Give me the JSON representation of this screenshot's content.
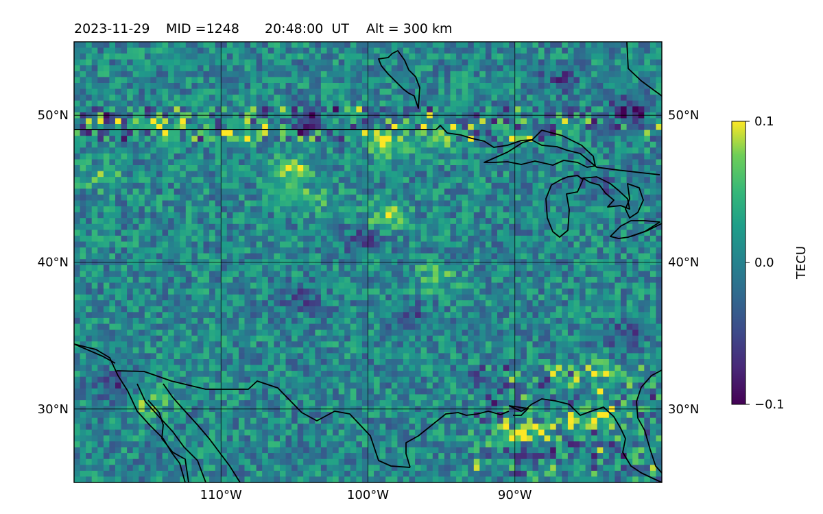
{
  "header": {
    "date": "2023-11-29",
    "mid": "MID =1248",
    "time": "20:48:00  UT",
    "alt": "Alt = 300 km"
  },
  "map": {
    "lat_range": [
      25,
      55
    ],
    "lon_range": [
      -120,
      -80
    ],
    "gridlines": true,
    "lat_ticks": [
      {
        "value": 50,
        "label": "50°N"
      },
      {
        "value": 40,
        "label": "40°N"
      },
      {
        "value": 30,
        "label": "30°N"
      }
    ],
    "lon_ticks": [
      {
        "value": -110,
        "label": "110°W"
      },
      {
        "value": -100,
        "label": "100°W"
      },
      {
        "value": -90,
        "label": "90°W"
      }
    ],
    "field_description": "differential TEC perturbation map with coastlines and borders",
    "hotspots": [
      {
        "lat": 48.2,
        "lon": -98.6,
        "value": 0.1
      },
      {
        "lat": 46.3,
        "lon": -105.2,
        "value": 0.09
      },
      {
        "lat": 49.0,
        "lon": -113.8,
        "value": 0.08
      },
      {
        "lat": 48.9,
        "lon": -108.6,
        "value": 0.08
      },
      {
        "lat": 48.5,
        "lon": -95.0,
        "value": 0.08
      },
      {
        "lat": 43.0,
        "lon": -98.8,
        "value": 0.09
      },
      {
        "lat": 39.0,
        "lon": -95.5,
        "value": 0.06
      },
      {
        "lat": 28.0,
        "lon": -90.0,
        "value": 0.1
      },
      {
        "lat": 28.3,
        "lon": -88.3,
        "value": 0.09
      },
      {
        "lat": 29.5,
        "lon": -84.0,
        "value": 0.08
      },
      {
        "lat": 32.3,
        "lon": -84.5,
        "value": 0.07
      },
      {
        "lat": 30.5,
        "lon": -115.0,
        "value": 0.07
      },
      {
        "lat": 45.8,
        "lon": -118.0,
        "value": 0.05
      },
      {
        "lat": 44.3,
        "lon": -103.8,
        "value": 0.05
      }
    ],
    "coldspots": [
      {
        "lat": 27.2,
        "lon": -89.0,
        "value": -0.1
      },
      {
        "lat": 31.5,
        "lon": -117.0,
        "value": -0.08
      },
      {
        "lat": 50.3,
        "lon": -82.5,
        "value": -0.08
      },
      {
        "lat": 49.8,
        "lon": -104.0,
        "value": -0.07
      },
      {
        "lat": 52.5,
        "lon": -87.0,
        "value": -0.06
      },
      {
        "lat": 41.5,
        "lon": -100.5,
        "value": -0.06
      },
      {
        "lat": 37.5,
        "lon": -104.5,
        "value": -0.05
      },
      {
        "lat": 35.0,
        "lon": -82.5,
        "value": -0.06
      },
      {
        "lat": 45.2,
        "lon": -84.5,
        "value": -0.05
      },
      {
        "lat": 36.2,
        "lon": -97.0,
        "value": -0.05
      }
    ]
  },
  "colorbar": {
    "label": "TECU",
    "min_label": "−0.1",
    "mid_label": "0.0",
    "max_label": "0.1",
    "min": -0.1,
    "max": 0.1,
    "colormap": "viridis",
    "colors": [
      "#440154",
      "#3b528b",
      "#21918c",
      "#5ec962",
      "#fde725"
    ]
  }
}
